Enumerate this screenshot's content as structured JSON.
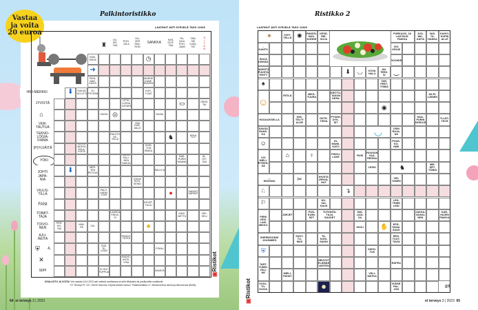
{
  "left_page": {
    "badge": "Vastaa\nja voita\n20 euroa",
    "title": "Palkintoristikko",
    "author": "LAATINUT ANTI SYRJÄLÄ TASO 12345",
    "header": [
      "UU-\nSIS-\nTAA",
      "POH-\nJOLA",
      "OLI-\nVER\nSHA-\nRON",
      "SANKKA",
      "KAN-\nSOIT-\nTAA",
      "PA-\nNUU\nPOH-\nJAAN",
      "TÄN-\nNE\nOJAS-\nTAT",
      "S\nI\nT\nE\nN"
    ],
    "labels": [
      "JYVISTÄ",
      "",
      "VER-\nTAUTUA",
      "TEKNO-\nLOGIA-\nFIRMA",
      "(P)YLVÄITÄ",
      "YÖKI",
      "JOHTI\nJAPA-\nNIA",
      "VIULIS-\nTILLA",
      "FANI",
      "TOIMIT-\nTAJA",
      "TOIVO-\nNEN",
      "AJU-\nREITA",
      "-IL",
      "",
      "SIIPI"
    ],
    "clues": [
      "KÄSI-\nKIRJA",
      "PIEN-\nNAR-\nKASVI",
      "HIFI-MERKKI",
      "SUKUN\nTULLUTTA",
      "DJ\nPÖYDÄN",
      "MURHE\nKANE-\nRVASSA",
      "KOH-\nTUUS",
      "OTTE-\nLUSSA\nOSTARI",
      "ORAS-\nTAI",
      "OIKEA",
      "RASIA",
      "ISIÄ\nKAR-\nJALLE",
      "RAUTIO\nVE-\nSILLÄ",
      "SEKÄ\n****",
      "MISTÄ\nMERTA\nSOLA-\nKOITA",
      "SOIN-\nTON\nISMAIL",
      "MUSII-\nKALI-\nNEN\nHAKIJA",
      "NAA-\nPURIN\nNAAMA",
      "AL-\nOIT-\nTAA",
      "MER-\nTEN\nPETOJA",
      "WALLEJA",
      "KUIVA\nELIN-\nKEINO",
      "PALO-\nKÄRKI\n0,999",
      "VAKEAT\nVARSAT",
      "KEVÄT-\nTUULI",
      "LAAKEA\nPÄIVÄ-\nSI",
      "KANI-\nNETTU",
      "VEK-\nSELI",
      "PER-\nHO-\nSIA",
      "NIIN-\nPÄ",
      "XXL",
      "PANOS-\nTUSTA",
      "TAIS-\nTE-\nLUUN",
      "POINU",
      "RADIO-\nAKTII-\nVISA",
      "EI OLE\nPUPPUA",
      "SHARON"
    ],
    "icons": [
      "desk-person-icon",
      "clock-icon",
      "arrow-right-icon",
      "arrow-down-icon",
      "folder-icon",
      "bell-dome-icon",
      "glasses-icon",
      "wolf-icon",
      "boxing-gloves-icon",
      "duck-icon",
      "coat-of-arms-icon",
      "mosquito-icon"
    ],
    "entry": {
      "lead": "OSALLISTU JA VOITA!",
      "text": " Voit vastata 18.4.2023 asti netissä osoitteessa et-lehti.fi/kilpailut tai postikortilla osoitteella\nET Terveys PL 107, 00040 Sanoma. Kirjoita korttiin tunnus \"Palkintoristikko 3\". Muista kertoa nimesi ja tilinumerosi (IBAN)."
    },
    "page_number": "64",
    "magazine": "et terveys",
    "issue": "3 | 2023",
    "logo": "Ristikot"
  },
  "right_page": {
    "title": "Ristikko 2",
    "author": "LAATINUT ANTI SYRJÄLÄ TASO 12345",
    "clues": [
      "VIIVY-\nTELLÄ",
      "RAKEN-\nNUS-\nKOHDE",
      "KESÄ-\nRIE-\nSOJA",
      "PURKAUS- JA\nLASTAUS-\nPAIKKA",
      "JUO-\nNIK-\nKAITA",
      "VAS-\nTA-\nHANKA",
      "KAHVI-\nKUPIN\nALLE",
      "-KANTO",
      "ISO\nKRUSI",
      "HUIJA\nKEIHÄS",
      "ROCHER",
      "VADESTÄ\nPUUSTA\nTEHTY",
      "KOVA\nHALU",
      "AN-\nTEEK-\nSI",
      "TAR-\nPEET-\nTOMIA",
      "RITILÄ",
      "MIKS-\nTUURA",
      "KEITTO-\nTASON\nKERA",
      "KILPI-\nLÄINEN",
      "HUIJAUKSELLA",
      "KIIS-\nTELTY\nALUE",
      "OKTE-\nTISSA",
      "PYSÄH-\nDYK-\nSIT",
      "NAA-\nPURIN\nKESKUS",
      "YLLÄT-\nTÄVÄ",
      "SAKSA\nRANS-\nKA",
      "OSIN\nRAJA-\nAN",
      "IH-\nMIUNI-\nKATO",
      "PUUK-\nKO-\nNIMI",
      "VOI\nMIELI-\nPITEEN-\nSÄ",
      "PIKKU-\nLUKE",
      "RUSI",
      "RUUSUN\nVAA-\nREISSA",
      "LESKI",
      "MIE-\nHET-\nTÖMIÄ",
      "....\nINSIGNIA",
      "IHOSTA\nIRRON-\nNUT",
      "VIR-\nTANEN",
      "HO-\nSAI-\nKAUS",
      "LEH-\nTINEN\nLIND",
      "PIENI\nVESI-\nLAM-\nMIKKO",
      "JÄRJET",
      "PUN-\nKUMI-\nSET",
      "TUTKINTA-\nTILAI-\nSUUDET",
      "SISI-\nLIAS-\nSA",
      "JAKKA-\nVAIVAI-\nNEN",
      "KAR-\nHUJEN\nPAIKKA",
      "SIVILI",
      "EPÄ-\nTASAI-\nSUUS",
      "SHERWOODIN\nJOUSIMIES",
      "SUUT-\nTU-\nMUS",
      "TA-\nKOIS-\nSAKIN",
      "REN-\nTOUT-\nTAVIA",
      "KIIHO-\nTUS",
      "TART-\nTUMIS-\nVÄLI-\nNE",
      "NEUVOT\nELÄMÄÄ\nVARTEN",
      "RAPEA",
      "MIELI-\nPAHAT",
      "VÄLI-\nMATKA",
      "KUUL-\nTO-\nKUVIA",
      "IKÄNÄ\nPAL-\nJON",
      "@S"
    ],
    "icons": [
      "lobster-icon",
      "dragon-icon",
      "salad-icon",
      "arrow-down-icon",
      "seal-icon",
      "boat-icon",
      "bird-icon",
      "girl-icon",
      "steering-wheel-icon",
      "bowl-icon",
      "sketch-face-icon",
      "house-icon",
      "figure-icon",
      "horse-rider-icon",
      "scissors-icon",
      "dog-icon",
      "arrow-right-down-icon",
      "running-exit-icon",
      "hands-icon",
      "coat-of-arms-icon",
      "moon-icon"
    ],
    "page_number": "65",
    "magazine": "et terveys",
    "issue": "3 | 2023",
    "logo": "Ristikot"
  },
  "colors": {
    "pink_solution": "#f6dde0",
    "badge": "#f7d21c",
    "sky": "#bfe3f7",
    "grass": "#9cc77e",
    "logo_red": "#d33"
  }
}
